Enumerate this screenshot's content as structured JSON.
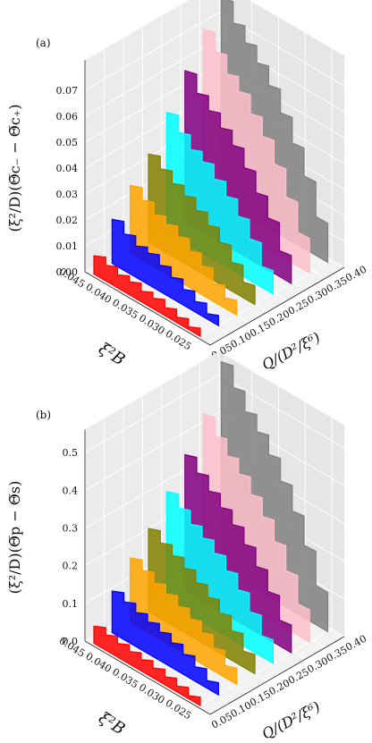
{
  "chart_data": [
    {
      "panel_label": "(a)",
      "type": "3d-waterfall",
      "x_label": "ξ²B",
      "x_ticks": [
        "0.045",
        "0.040",
        "0.035",
        "0.030",
        "0.025"
      ],
      "y_label": "Q/(D²/ξ⁶)",
      "y_ticks": [
        "0.05",
        "0.10",
        "0.15",
        "0.20",
        "0.25",
        "0.30",
        "0.35",
        "0.40"
      ],
      "z_label": "(ξ²/D)(Θ̅c₋ − Θ̅c₊)",
      "z_ticks": [
        "0.00",
        "0.01",
        "0.02",
        "0.03",
        "0.04",
        "0.05",
        "0.06",
        "0.07"
      ],
      "z_range": [
        0,
        0.08
      ],
      "series": [
        {
          "color": "#ff0000",
          "q_max": 0.05,
          "values": [
            0.007,
            0.006,
            0.005,
            0.005,
            0.004,
            0.004,
            0.003,
            0.002,
            0.001,
            0.0
          ]
        },
        {
          "color": "#0000ff",
          "q_max": 0.1,
          "values": [
            0.017,
            0.014,
            0.012,
            0.012,
            0.01,
            0.008,
            0.006,
            0.004,
            0.002,
            0.0
          ]
        },
        {
          "color": "#ffa500",
          "q_max": 0.15,
          "values": [
            0.026,
            0.023,
            0.02,
            0.019,
            0.017,
            0.014,
            0.011,
            0.007,
            0.004,
            0.0
          ]
        },
        {
          "color": "#808000",
          "q_max": 0.2,
          "values": [
            0.034,
            0.031,
            0.028,
            0.026,
            0.023,
            0.02,
            0.016,
            0.011,
            0.006,
            0.0
          ]
        },
        {
          "color": "#00ffff",
          "q_max": 0.25,
          "values": [
            0.046,
            0.041,
            0.037,
            0.035,
            0.031,
            0.027,
            0.022,
            0.016,
            0.008,
            0.0
          ]
        },
        {
          "color": "#800080",
          "q_max": 0.3,
          "values": [
            0.058,
            0.052,
            0.048,
            0.044,
            0.04,
            0.034,
            0.027,
            0.02,
            0.01,
            0.0
          ]
        },
        {
          "color": "#ffc0cb",
          "q_max": 0.35,
          "values": [
            0.07,
            0.064,
            0.058,
            0.054,
            0.048,
            0.042,
            0.034,
            0.024,
            0.013,
            0.0
          ]
        },
        {
          "color": "#808080",
          "q_max": 0.4,
          "values": [
            0.078,
            0.071,
            0.066,
            0.061,
            0.055,
            0.047,
            0.038,
            0.028,
            0.015,
            0.0
          ]
        }
      ]
    },
    {
      "panel_label": "(b)",
      "type": "3d-waterfall",
      "x_label": "ξ²B",
      "x_ticks": [
        "0.045",
        "0.040",
        "0.035",
        "0.030",
        "0.025"
      ],
      "y_label": "Q/(D²/ξ⁶)",
      "y_ticks": [
        "0.05",
        "0.10",
        "0.15",
        "0.20",
        "0.25",
        "0.30",
        "0.35",
        "0.40"
      ],
      "z_label": "(ξ²/D)(Θ̅p − Θ̅s)",
      "z_ticks": [
        "0.0",
        "0.1",
        "0.2",
        "0.3",
        "0.4",
        "0.5"
      ],
      "z_range": [
        0,
        0.55
      ],
      "series": [
        {
          "color": "#ff0000",
          "q_max": 0.05,
          "values": [
            0.045,
            0.04,
            0.036,
            0.033,
            0.03,
            0.026,
            0.021,
            0.015,
            0.008,
            0.0
          ]
        },
        {
          "color": "#0000ff",
          "q_max": 0.1,
          "values": [
            0.11,
            0.1,
            0.09,
            0.083,
            0.075,
            0.065,
            0.053,
            0.038,
            0.02,
            0.0
          ]
        },
        {
          "color": "#ffa500",
          "q_max": 0.15,
          "values": [
            0.17,
            0.155,
            0.14,
            0.13,
            0.115,
            0.1,
            0.082,
            0.06,
            0.032,
            0.0
          ]
        },
        {
          "color": "#808000",
          "q_max": 0.2,
          "values": [
            0.22,
            0.2,
            0.185,
            0.17,
            0.15,
            0.13,
            0.106,
            0.078,
            0.042,
            0.0
          ]
        },
        {
          "color": "#00ffff",
          "q_max": 0.25,
          "values": [
            0.29,
            0.265,
            0.24,
            0.222,
            0.2,
            0.172,
            0.14,
            0.1,
            0.055,
            0.0
          ]
        },
        {
          "color": "#800080",
          "q_max": 0.3,
          "values": [
            0.36,
            0.33,
            0.3,
            0.275,
            0.248,
            0.214,
            0.174,
            0.126,
            0.068,
            0.0
          ]
        },
        {
          "color": "#ffc0cb",
          "q_max": 0.35,
          "values": [
            0.44,
            0.4,
            0.365,
            0.336,
            0.3,
            0.26,
            0.212,
            0.153,
            0.083,
            0.0
          ]
        },
        {
          "color": "#808080",
          "q_max": 0.4,
          "values": [
            0.55,
            0.5,
            0.455,
            0.42,
            0.378,
            0.326,
            0.265,
            0.192,
            0.104,
            0.0
          ]
        }
      ]
    }
  ]
}
